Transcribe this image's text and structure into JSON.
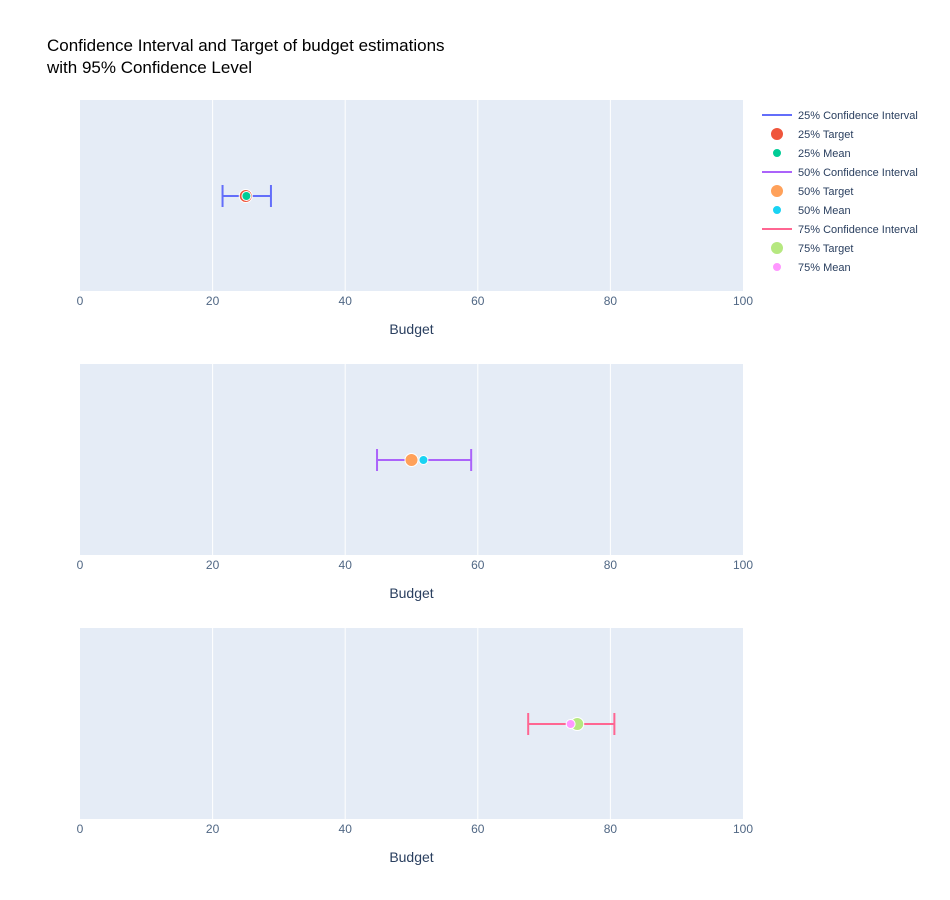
{
  "chart_data": {
    "type": "scatter",
    "title_lines": [
      "Confidence Interval and Target of budget estimations",
      "with 95% Confidence Level"
    ],
    "xlabel": "Budget",
    "xlim": [
      0,
      100
    ],
    "xticks": [
      0,
      20,
      40,
      60,
      80,
      100
    ],
    "grid": true,
    "legend_position": "top-right",
    "colors": {
      "plot_bg": "#e5ecf6",
      "grid": "#ffffff",
      "text": "#2a3f5f",
      "tick_text": "#506784"
    },
    "panels": [
      {
        "ci_name": "25% Confidence Interval",
        "ci_low": 21.5,
        "ci_high": 28.8,
        "ci_color": "#636efa",
        "target_name": "25% Target",
        "target": 25,
        "target_color": "#ef553b",
        "mean_name": "25% Mean",
        "mean": 25.1,
        "mean_color": "#00cc96"
      },
      {
        "ci_name": "50% Confidence Interval",
        "ci_low": 44.8,
        "ci_high": 59,
        "ci_color": "#ab63fa",
        "target_name": "50% Target",
        "target": 50,
        "target_color": "#ffa15a",
        "mean_name": "50% Mean",
        "mean": 51.8,
        "mean_color": "#19d3f3"
      },
      {
        "ci_name": "75% Confidence Interval",
        "ci_low": 67.6,
        "ci_high": 80.6,
        "ci_color": "#ff6692",
        "target_name": "75% Target",
        "target": 75,
        "target_color": "#b6e880",
        "mean_name": "75% Mean",
        "mean": 74,
        "mean_color": "#ff97ff"
      }
    ]
  }
}
